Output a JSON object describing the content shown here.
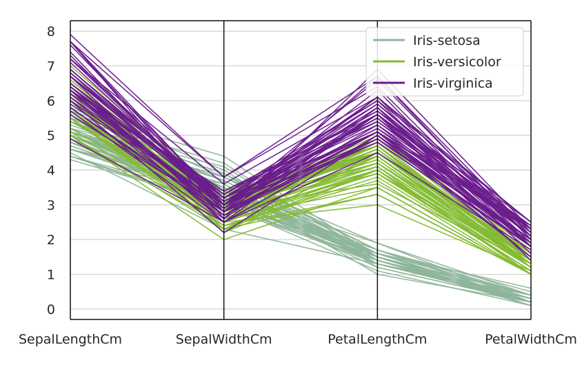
{
  "chart_data": {
    "type": "parallel-coordinates",
    "title": "",
    "axes": [
      "SepalLengthCm",
      "SepalWidthCm",
      "PetalLengthCm",
      "PetalWidthCm"
    ],
    "ylim": [
      -0.3,
      8.3
    ],
    "yticks": [
      0,
      1,
      2,
      3,
      4,
      5,
      6,
      7,
      8
    ],
    "grid": true,
    "legend_position": "top-right",
    "series": [
      {
        "name": "Iris-setosa",
        "color": "#8fb59b",
        "rows": [
          [
            5.1,
            3.5,
            1.4,
            0.2
          ],
          [
            4.9,
            3.0,
            1.4,
            0.2
          ],
          [
            4.7,
            3.2,
            1.3,
            0.2
          ],
          [
            4.6,
            3.1,
            1.5,
            0.2
          ],
          [
            5.0,
            3.6,
            1.4,
            0.2
          ],
          [
            5.4,
            3.9,
            1.7,
            0.4
          ],
          [
            4.6,
            3.4,
            1.4,
            0.3
          ],
          [
            5.0,
            3.4,
            1.5,
            0.2
          ],
          [
            4.4,
            2.9,
            1.4,
            0.2
          ],
          [
            4.9,
            3.1,
            1.5,
            0.1
          ],
          [
            5.4,
            3.7,
            1.5,
            0.2
          ],
          [
            4.8,
            3.4,
            1.6,
            0.2
          ],
          [
            4.8,
            3.0,
            1.4,
            0.1
          ],
          [
            4.3,
            3.0,
            1.1,
            0.1
          ],
          [
            5.8,
            4.0,
            1.2,
            0.2
          ],
          [
            5.7,
            4.4,
            1.5,
            0.4
          ],
          [
            5.4,
            3.9,
            1.3,
            0.4
          ],
          [
            5.1,
            3.5,
            1.4,
            0.3
          ],
          [
            5.7,
            3.8,
            1.7,
            0.3
          ],
          [
            5.1,
            3.8,
            1.5,
            0.3
          ],
          [
            5.4,
            3.4,
            1.7,
            0.2
          ],
          [
            5.1,
            3.7,
            1.5,
            0.4
          ],
          [
            4.6,
            3.6,
            1.0,
            0.2
          ],
          [
            5.1,
            3.3,
            1.7,
            0.5
          ],
          [
            4.8,
            3.4,
            1.9,
            0.2
          ],
          [
            5.0,
            3.0,
            1.6,
            0.2
          ],
          [
            5.0,
            3.4,
            1.6,
            0.4
          ],
          [
            5.2,
            3.5,
            1.5,
            0.2
          ],
          [
            5.2,
            3.4,
            1.4,
            0.2
          ],
          [
            4.7,
            3.2,
            1.6,
            0.2
          ],
          [
            4.8,
            3.1,
            1.6,
            0.2
          ],
          [
            5.4,
            3.4,
            1.5,
            0.4
          ],
          [
            5.2,
            4.1,
            1.5,
            0.1
          ],
          [
            5.5,
            4.2,
            1.4,
            0.2
          ],
          [
            4.9,
            3.1,
            1.5,
            0.1
          ],
          [
            5.0,
            3.2,
            1.2,
            0.2
          ],
          [
            5.5,
            3.5,
            1.3,
            0.2
          ],
          [
            4.9,
            3.1,
            1.5,
            0.1
          ],
          [
            4.4,
            3.0,
            1.3,
            0.2
          ],
          [
            5.1,
            3.4,
            1.5,
            0.2
          ],
          [
            5.0,
            3.5,
            1.3,
            0.3
          ],
          [
            4.5,
            2.3,
            1.3,
            0.3
          ],
          [
            4.4,
            3.2,
            1.3,
            0.2
          ],
          [
            5.0,
            3.5,
            1.6,
            0.6
          ],
          [
            5.1,
            3.8,
            1.9,
            0.4
          ],
          [
            4.8,
            3.0,
            1.4,
            0.3
          ],
          [
            5.1,
            3.8,
            1.6,
            0.2
          ],
          [
            4.6,
            3.2,
            1.4,
            0.2
          ],
          [
            5.3,
            3.7,
            1.5,
            0.2
          ],
          [
            5.0,
            3.3,
            1.4,
            0.2
          ]
        ]
      },
      {
        "name": "Iris-versicolor",
        "color": "#84bb33",
        "rows": [
          [
            7.0,
            3.2,
            4.7,
            1.4
          ],
          [
            6.4,
            3.2,
            4.5,
            1.5
          ],
          [
            6.9,
            3.1,
            4.9,
            1.5
          ],
          [
            5.5,
            2.3,
            4.0,
            1.3
          ],
          [
            6.5,
            2.8,
            4.6,
            1.5
          ],
          [
            5.7,
            2.8,
            4.5,
            1.3
          ],
          [
            6.3,
            3.3,
            4.7,
            1.6
          ],
          [
            4.9,
            2.4,
            3.3,
            1.0
          ],
          [
            6.6,
            2.9,
            4.6,
            1.3
          ],
          [
            5.2,
            2.7,
            3.9,
            1.4
          ],
          [
            5.0,
            2.0,
            3.5,
            1.0
          ],
          [
            5.9,
            3.0,
            4.2,
            1.5
          ],
          [
            6.0,
            2.2,
            4.0,
            1.0
          ],
          [
            6.1,
            2.9,
            4.7,
            1.4
          ],
          [
            5.6,
            2.9,
            3.6,
            1.3
          ],
          [
            6.7,
            3.1,
            4.4,
            1.4
          ],
          [
            5.6,
            3.0,
            4.5,
            1.5
          ],
          [
            5.8,
            2.7,
            4.1,
            1.0
          ],
          [
            6.2,
            2.2,
            4.5,
            1.5
          ],
          [
            5.6,
            2.5,
            3.9,
            1.1
          ],
          [
            5.9,
            3.2,
            4.8,
            1.8
          ],
          [
            6.1,
            2.8,
            4.0,
            1.3
          ],
          [
            6.3,
            2.5,
            4.9,
            1.5
          ],
          [
            6.1,
            2.8,
            4.7,
            1.2
          ],
          [
            6.4,
            2.9,
            4.3,
            1.3
          ],
          [
            6.6,
            3.0,
            4.4,
            1.4
          ],
          [
            6.8,
            2.8,
            4.8,
            1.4
          ],
          [
            6.7,
            3.0,
            5.0,
            1.7
          ],
          [
            6.0,
            2.9,
            4.5,
            1.5
          ],
          [
            5.7,
            2.6,
            3.5,
            1.0
          ],
          [
            5.5,
            2.4,
            3.8,
            1.1
          ],
          [
            5.5,
            2.4,
            3.7,
            1.0
          ],
          [
            5.8,
            2.7,
            3.9,
            1.2
          ],
          [
            6.0,
            2.7,
            5.1,
            1.6
          ],
          [
            5.4,
            3.0,
            4.5,
            1.5
          ],
          [
            6.0,
            3.4,
            4.5,
            1.6
          ],
          [
            6.7,
            3.1,
            4.7,
            1.5
          ],
          [
            6.3,
            2.3,
            4.4,
            1.3
          ],
          [
            5.6,
            3.0,
            4.1,
            1.3
          ],
          [
            5.5,
            2.5,
            4.0,
            1.3
          ],
          [
            5.5,
            2.6,
            4.4,
            1.2
          ],
          [
            6.1,
            3.0,
            4.6,
            1.4
          ],
          [
            5.8,
            2.6,
            4.0,
            1.2
          ],
          [
            5.0,
            2.3,
            3.3,
            1.0
          ],
          [
            5.6,
            2.7,
            4.2,
            1.3
          ],
          [
            5.7,
            3.0,
            4.2,
            1.2
          ],
          [
            5.7,
            2.9,
            4.2,
            1.3
          ],
          [
            6.2,
            2.9,
            4.3,
            1.3
          ],
          [
            5.1,
            2.5,
            3.0,
            1.1
          ],
          [
            5.7,
            2.8,
            4.1,
            1.3
          ]
        ]
      },
      {
        "name": "Iris-virginica",
        "color": "#6a1c8c",
        "rows": [
          [
            6.3,
            3.3,
            6.0,
            2.5
          ],
          [
            5.8,
            2.7,
            5.1,
            1.9
          ],
          [
            7.1,
            3.0,
            5.9,
            2.1
          ],
          [
            6.3,
            2.9,
            5.6,
            1.8
          ],
          [
            6.5,
            3.0,
            5.8,
            2.2
          ],
          [
            7.6,
            3.0,
            6.6,
            2.1
          ],
          [
            4.9,
            2.5,
            4.5,
            1.7
          ],
          [
            7.3,
            2.9,
            6.3,
            1.8
          ],
          [
            6.7,
            2.5,
            5.8,
            1.8
          ],
          [
            7.2,
            3.6,
            6.1,
            2.5
          ],
          [
            6.5,
            3.2,
            5.1,
            2.0
          ],
          [
            6.4,
            2.7,
            5.3,
            1.9
          ],
          [
            6.8,
            3.0,
            5.5,
            2.1
          ],
          [
            5.7,
            2.5,
            5.0,
            2.0
          ],
          [
            5.8,
            2.8,
            5.1,
            2.4
          ],
          [
            6.4,
            3.2,
            5.3,
            2.3
          ],
          [
            6.5,
            3.0,
            5.5,
            1.8
          ],
          [
            7.7,
            3.8,
            6.7,
            2.2
          ],
          [
            7.7,
            2.6,
            6.9,
            2.3
          ],
          [
            6.0,
            2.2,
            5.0,
            1.5
          ],
          [
            6.9,
            3.2,
            5.7,
            2.3
          ],
          [
            5.6,
            2.8,
            4.9,
            2.0
          ],
          [
            7.7,
            2.8,
            6.7,
            2.0
          ],
          [
            6.3,
            2.7,
            4.9,
            1.8
          ],
          [
            6.7,
            3.3,
            5.7,
            2.1
          ],
          [
            7.2,
            3.2,
            6.0,
            1.8
          ],
          [
            6.2,
            2.8,
            4.8,
            1.8
          ],
          [
            6.1,
            3.0,
            4.9,
            1.8
          ],
          [
            6.4,
            2.8,
            5.6,
            2.1
          ],
          [
            7.2,
            3.0,
            5.8,
            1.6
          ],
          [
            7.4,
            2.8,
            6.1,
            1.9
          ],
          [
            7.9,
            3.8,
            6.4,
            2.0
          ],
          [
            6.4,
            2.8,
            5.6,
            2.2
          ],
          [
            6.3,
            2.8,
            5.1,
            1.5
          ],
          [
            6.1,
            2.6,
            5.6,
            1.4
          ],
          [
            7.7,
            3.0,
            6.1,
            2.3
          ],
          [
            6.3,
            3.4,
            5.6,
            2.4
          ],
          [
            6.4,
            3.1,
            5.5,
            1.8
          ],
          [
            6.0,
            3.0,
            4.8,
            1.8
          ],
          [
            6.9,
            3.1,
            5.4,
            2.1
          ],
          [
            6.7,
            3.1,
            5.6,
            2.4
          ],
          [
            6.9,
            3.1,
            5.1,
            2.3
          ],
          [
            5.8,
            2.7,
            5.1,
            1.9
          ],
          [
            6.8,
            3.2,
            5.9,
            2.3
          ],
          [
            6.7,
            3.3,
            5.7,
            2.5
          ],
          [
            6.7,
            3.0,
            5.2,
            2.3
          ],
          [
            6.3,
            2.5,
            5.0,
            1.9
          ],
          [
            6.5,
            3.0,
            5.2,
            2.0
          ],
          [
            6.2,
            3.4,
            5.4,
            2.3
          ],
          [
            5.9,
            3.0,
            5.1,
            1.8
          ]
        ]
      }
    ]
  }
}
